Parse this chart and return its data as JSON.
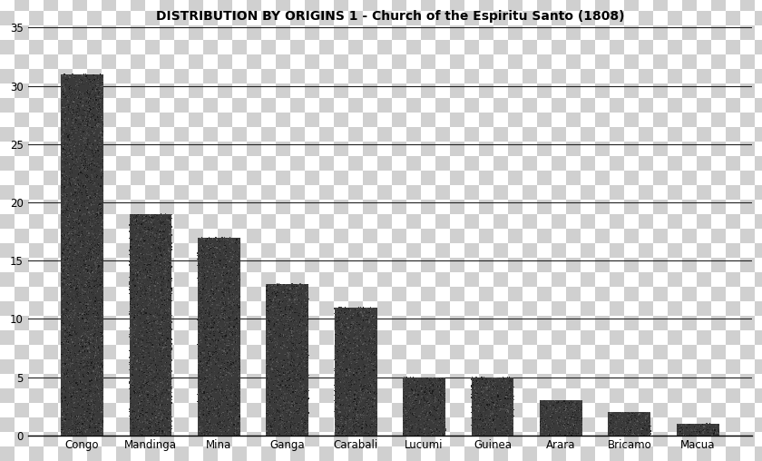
{
  "title": "DISTRIBUTION BY ORIGINS 1 - Church of the Espiritu Santo (1808)",
  "categories": [
    "Congo",
    "Mandinga",
    "Mina",
    "Ganga",
    "Carabali",
    "Lucumi",
    "Guinea",
    "Arara",
    "Bricamo",
    "Macua"
  ],
  "values": [
    31,
    19,
    17,
    13,
    11,
    5,
    5,
    3,
    2,
    1
  ],
  "ylim": [
    0,
    35
  ],
  "yticks": [
    0,
    5,
    10,
    15,
    20,
    25,
    30,
    35
  ],
  "bar_color_dark": "#3a3a3a",
  "bar_color_light": "#555555",
  "checker_light": "#ffffff",
  "checker_dark": "#d0d0d0",
  "title_fontsize": 10,
  "tick_fontsize": 8.5,
  "grid_color": "#222222",
  "bar_edgecolor": "#1a1a1a",
  "checker_size": 16
}
